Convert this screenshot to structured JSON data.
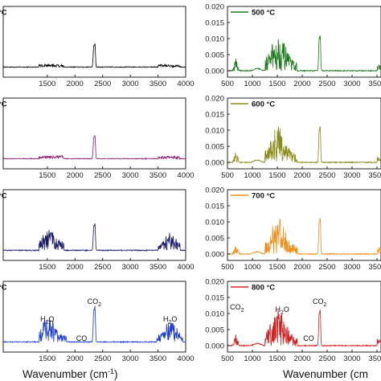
{
  "chart_data": [
    {
      "type": "line",
      "panel": "left-1",
      "legend": "°C",
      "color": "#000000",
      "xlim": [
        500,
        4000
      ],
      "xticks": [
        "1500",
        "2000",
        "2500",
        "3000",
        "3500",
        "4000"
      ],
      "yticks": [],
      "profile": "low",
      "annotations": []
    },
    {
      "type": "line",
      "panel": "right-1",
      "legend": "500 °C",
      "color": "#1a7a1a",
      "xlim": [
        500,
        4000
      ],
      "ylim": [
        -0.002,
        0.02
      ],
      "xticks": [
        "500",
        "1000",
        "1500",
        "2000",
        "2500",
        "3000",
        "3500"
      ],
      "yticks": [
        "0.000",
        "0.005",
        "0.010",
        "0.015",
        "0.020"
      ],
      "profile": "high",
      "annotations": []
    },
    {
      "type": "line",
      "panel": "left-2",
      "legend": "°C",
      "color": "#8b1a6b",
      "xlim": [
        500,
        4000
      ],
      "xticks": [
        "1500",
        "2000",
        "2500",
        "3000",
        "3500",
        "4000"
      ],
      "yticks": [],
      "profile": "low",
      "annotations": []
    },
    {
      "type": "line",
      "panel": "right-2",
      "legend": "600 °C",
      "color": "#8b8b1a",
      "xlim": [
        500,
        4000
      ],
      "ylim": [
        -0.002,
        0.02
      ],
      "xticks": [
        "500",
        "1000",
        "1500",
        "2000",
        "2500",
        "3000",
        "3500"
      ],
      "yticks": [
        "0.000",
        "0.005",
        "0.010",
        "0.015",
        "0.020"
      ],
      "profile": "high",
      "annotations": []
    },
    {
      "type": "line",
      "panel": "left-3",
      "legend": "°C",
      "color": "#1a1a6b",
      "xlim": [
        500,
        4000
      ],
      "xticks": [
        "1500",
        "2000",
        "2500",
        "3000",
        "3500",
        "4000"
      ],
      "yticks": [],
      "profile": "mid",
      "annotations": []
    },
    {
      "type": "line",
      "panel": "right-3",
      "legend": "700 °C",
      "color": "#f0901a",
      "xlim": [
        500,
        4000
      ],
      "ylim": [
        -0.002,
        0.02
      ],
      "xticks": [
        "500",
        "1000",
        "1500",
        "2000",
        "2500",
        "3000",
        "3500"
      ],
      "yticks": [
        "0.000",
        "0.005",
        "0.010",
        "0.015",
        "0.020"
      ],
      "profile": "high",
      "annotations": []
    },
    {
      "type": "line",
      "panel": "left-4",
      "legend": "°C",
      "color": "#1a3ad6",
      "xlim": [
        500,
        4000
      ],
      "xticks": [
        "1500",
        "2000",
        "2500",
        "3000",
        "3500",
        "4000"
      ],
      "yticks": [],
      "profile": "blue",
      "annotations": [
        {
          "text": "H",
          "sub": "2",
          "tail": "O",
          "x": 1500
        },
        {
          "text": "CO",
          "sub": "2",
          "tail": "",
          "x": 2350
        },
        {
          "text": "CO",
          "sub": "",
          "tail": "",
          "x": 2120
        },
        {
          "text": "H",
          "sub": "2",
          "tail": "O",
          "x": 3720
        }
      ]
    },
    {
      "type": "line",
      "panel": "right-4",
      "legend": "800 °C",
      "color": "#d62020",
      "xlim": [
        500,
        4000
      ],
      "ylim": [
        -0.002,
        0.02
      ],
      "xticks": [
        "500",
        "1000",
        "1500",
        "2000",
        "2500",
        "3000",
        "3500"
      ],
      "yticks": [
        "0.000",
        "0.005",
        "0.010",
        "0.015",
        "0.020"
      ],
      "profile": "high",
      "annotations": [
        {
          "text": "CO",
          "sub": "2",
          "tail": "",
          "x": 690
        },
        {
          "text": "H",
          "sub": "2",
          "tail": "O",
          "x": 1600
        },
        {
          "text": "CO",
          "sub": "",
          "tail": "",
          "x": 2130
        },
        {
          "text": "CO",
          "sub": "2",
          "tail": "",
          "x": 2350
        }
      ]
    }
  ],
  "xlabel_left": "Wavenumber (cm",
  "xlabel_right": "Wavenumber (cm",
  "xlabel_sup": "-1",
  "xlabel_close": ")"
}
